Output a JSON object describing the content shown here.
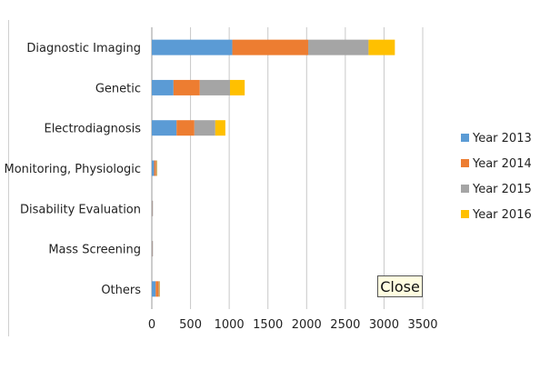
{
  "chart_data": {
    "type": "bar",
    "orientation": "horizontal",
    "stacked": true,
    "categories": [
      "Diagnostic Imaging",
      "Genetic",
      "Electrodiagnosis",
      "Monitoring, Physiologic",
      "Disability Evaluation",
      "Mass Screening",
      "Others"
    ],
    "series": [
      {
        "name": "Year 2013",
        "color": "#5b9bd5",
        "values": [
          1040,
          280,
          320,
          30,
          5,
          5,
          50
        ]
      },
      {
        "name": "Year 2014",
        "color": "#ed7d31",
        "values": [
          980,
          340,
          230,
          25,
          5,
          5,
          40
        ]
      },
      {
        "name": "Year 2015",
        "color": "#a5a5a5",
        "values": [
          780,
          390,
          270,
          10,
          5,
          5,
          10
        ]
      },
      {
        "name": "Year 2016",
        "color": "#ffc000",
        "values": [
          340,
          190,
          130,
          5,
          0,
          0,
          5
        ]
      }
    ],
    "xlim": [
      0,
      3500
    ],
    "xticks": [
      "0",
      "500",
      "1000",
      "1500",
      "2000",
      "2500",
      "3000",
      "3500"
    ],
    "grid": "vertical",
    "legend": "right"
  },
  "close_label": "Close"
}
